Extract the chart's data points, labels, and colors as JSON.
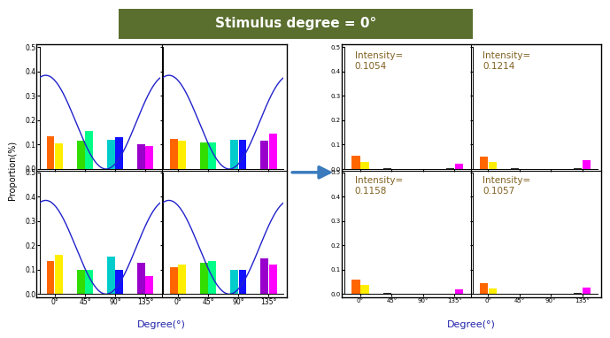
{
  "title": "Stimulus degree = 0°",
  "title_bg": "#5a6e2e",
  "title_color": "white",
  "xlabel": "Degree(°)",
  "ylabel": "Proportion(%)",
  "yticks": [
    0,
    0.1,
    0.2,
    0.3,
    0.4,
    0.5
  ],
  "xtick_labels": [
    "0°",
    "45°",
    "90°",
    "135°"
  ],
  "bar_colors": [
    "#ff6600",
    "#ffee00",
    "#33dd00",
    "#00ff88",
    "#00cccc",
    "#1111ff",
    "#9900cc",
    "#ff00ff"
  ],
  "left_panels": [
    [
      0.135,
      0.105,
      0.115,
      0.155,
      0.12,
      0.13,
      0.1,
      0.095
    ],
    [
      0.125,
      0.115,
      0.11,
      0.11,
      0.12,
      0.12,
      0.115,
      0.145
    ],
    [
      0.135,
      0.16,
      0.1,
      0.1,
      0.155,
      0.1,
      0.13,
      0.075
    ],
    [
      0.11,
      0.12,
      0.13,
      0.135,
      0.1,
      0.1,
      0.145,
      0.12
    ]
  ],
  "right_panels": [
    [
      0.055,
      0.028,
      0.004,
      0.001,
      0.001,
      0.001,
      0.002,
      0.022
    ],
    [
      0.052,
      0.028,
      0.004,
      0.001,
      0.001,
      0.001,
      0.003,
      0.038
    ],
    [
      0.058,
      0.038,
      0.005,
      0.001,
      0.001,
      0.001,
      0.002,
      0.02
    ],
    [
      0.044,
      0.024,
      0.003,
      0.001,
      0.001,
      0.001,
      0.004,
      0.026
    ]
  ],
  "right_bar_colors": [
    "#ff6600",
    "#ffee00",
    "#333333",
    "#333333",
    "#333333",
    "#333333",
    "#333333",
    "#ff00ff"
  ],
  "intensities": [
    "0.1054",
    "0.1214",
    "0.1158",
    "0.1057"
  ],
  "intensity_color": "#806020",
  "curve_color": "#2222cc",
  "curve_amplitude": 0.385,
  "xlabel_color": "#2222aa",
  "ylabel_color": "black"
}
